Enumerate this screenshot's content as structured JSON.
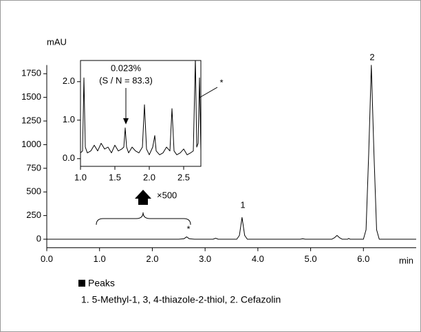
{
  "chart_data": [
    {
      "type": "line",
      "ylabel": "mAU",
      "xlabel": "min",
      "x": [
        0,
        1.0,
        2.5,
        2.6,
        2.65,
        2.7,
        2.8,
        3.15,
        3.2,
        3.25,
        3.6,
        3.65,
        3.7,
        3.75,
        3.8,
        4.8,
        4.85,
        4.9,
        5.4,
        5.45,
        5.5,
        5.55,
        5.6,
        5.7,
        5.72,
        5.75,
        6.0,
        6.05,
        6.1,
        6.15,
        6.2,
        6.25,
        6.3,
        7.0
      ],
      "values": [
        0,
        0,
        0,
        5,
        25,
        5,
        0,
        0,
        10,
        0,
        0,
        40,
        230,
        40,
        0,
        0,
        5,
        0,
        0,
        15,
        40,
        15,
        0,
        0,
        8,
        0,
        0,
        100,
        900,
        1840,
        900,
        100,
        0,
        0
      ],
      "color": "#000000",
      "xlim": [
        0,
        7.0
      ],
      "xticks": [
        {
          "value": 0,
          "label": "0.0"
        },
        {
          "value": 1,
          "label": "1.0"
        },
        {
          "value": 2,
          "label": "2.0"
        },
        {
          "value": 3,
          "label": "3.0"
        },
        {
          "value": 4,
          "label": "4.0"
        },
        {
          "value": 5,
          "label": "5.0"
        },
        {
          "value": 6,
          "label": "6.0"
        }
      ],
      "ylim": [
        -90,
        1900
      ],
      "yticks": [
        0,
        250,
        500,
        750,
        1000,
        1250,
        1500,
        1750
      ],
      "annotations": [
        "1",
        "2",
        "*",
        "×500"
      ]
    },
    {
      "type": "line",
      "x": [
        1.0,
        1.03,
        1.05,
        1.07,
        1.1,
        1.15,
        1.2,
        1.25,
        1.3,
        1.35,
        1.4,
        1.45,
        1.5,
        1.55,
        1.6,
        1.63,
        1.65,
        1.67,
        1.7,
        1.75,
        1.8,
        1.85,
        1.9,
        1.93,
        1.96,
        2.0,
        2.05,
        2.08,
        2.1,
        2.15,
        2.2,
        2.25,
        2.3,
        2.33,
        2.36,
        2.4,
        2.45,
        2.5,
        2.55,
        2.6,
        2.64,
        2.67,
        2.69,
        2.71,
        2.73,
        2.75
      ],
      "values": [
        0.15,
        0.2,
        2.1,
        0.3,
        0.15,
        0.2,
        0.35,
        0.2,
        0.4,
        0.25,
        0.3,
        0.15,
        0.35,
        0.2,
        0.25,
        0.3,
        0.8,
        0.3,
        0.15,
        0.3,
        0.2,
        0.15,
        0.3,
        1.4,
        0.25,
        0.1,
        0.3,
        0.6,
        0.2,
        0.1,
        0.15,
        0.3,
        0.2,
        1.3,
        0.2,
        0.1,
        0.15,
        0.25,
        0.1,
        0.15,
        0.2,
        2.6,
        0.3,
        0.4,
        2.1,
        0.2
      ],
      "color": "#000000",
      "xlim": [
        1.0,
        2.75
      ],
      "xticks": [
        {
          "value": 1,
          "label": "1.0"
        },
        {
          "value": 1.5,
          "label": "1.5"
        },
        {
          "value": 2,
          "label": "2.0"
        },
        {
          "value": 2.5,
          "label": "2.5"
        }
      ],
      "ylim": [
        -0.2,
        2.55
      ],
      "yticks": [
        {
          "value": 0,
          "label": "0.0"
        },
        {
          "value": 1,
          "label": "1.0"
        },
        {
          "value": 2,
          "label": "2.0"
        }
      ],
      "annotations": [
        "0.023%",
        "(S / N = 83.3)",
        "*"
      ]
    }
  ],
  "legend": {
    "title": "Peaks",
    "text": "1. 5-Methyl-1, 3, 4-thiazole-2-thiol, 2. Cefazolin"
  }
}
